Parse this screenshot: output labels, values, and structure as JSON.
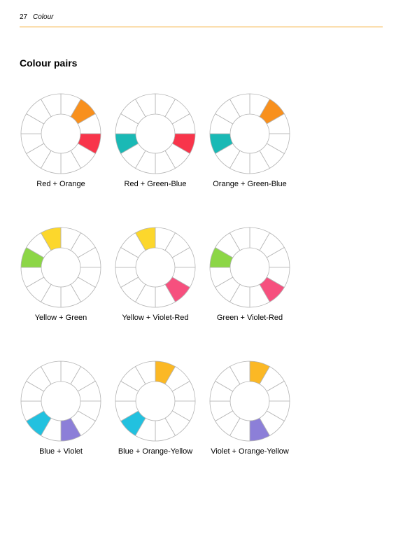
{
  "header": {
    "page_number": "27",
    "section": "Colour"
  },
  "title": "Colour pairs",
  "wheel": {
    "segments": 12,
    "line_color": "#b4b4b4",
    "colors": {
      "yellow": "#fcd72c",
      "orange_yellow": "#fbb825",
      "orange": "#f8901d",
      "red": "#f8354b",
      "violet_red": "#f6507e",
      "violet": "#8c7fd8",
      "blue": "#22c1df",
      "green_blue": "#1ab9b5",
      "green": "#8cd646"
    }
  },
  "pairs": [
    {
      "label": "Red + Orange",
      "highlights": [
        {
          "segment": 1,
          "color": "orange"
        },
        {
          "segment": 3,
          "color": "red"
        }
      ]
    },
    {
      "label": "Red + Green-Blue",
      "highlights": [
        {
          "segment": 3,
          "color": "red"
        },
        {
          "segment": 8,
          "color": "green_blue"
        }
      ]
    },
    {
      "label": "Orange + Green-Blue",
      "highlights": [
        {
          "segment": 1,
          "color": "orange"
        },
        {
          "segment": 8,
          "color": "green_blue"
        }
      ]
    },
    {
      "label": "Yellow + Green",
      "highlights": [
        {
          "segment": 11,
          "color": "yellow"
        },
        {
          "segment": 9,
          "color": "green"
        }
      ]
    },
    {
      "label": "Yellow + Violet-Red",
      "highlights": [
        {
          "segment": 11,
          "color": "yellow"
        },
        {
          "segment": 4,
          "color": "violet_red"
        }
      ]
    },
    {
      "label": "Green + Violet-Red",
      "highlights": [
        {
          "segment": 9,
          "color": "green"
        },
        {
          "segment": 4,
          "color": "violet_red"
        }
      ]
    },
    {
      "label": "Blue + Violet",
      "highlights": [
        {
          "segment": 7,
          "color": "blue"
        },
        {
          "segment": 5,
          "color": "violet"
        }
      ]
    },
    {
      "label": "Blue + Orange-Yellow",
      "highlights": [
        {
          "segment": 7,
          "color": "blue"
        },
        {
          "segment": 0,
          "color": "orange_yellow"
        }
      ]
    },
    {
      "label": "Violet + Orange-Yellow",
      "highlights": [
        {
          "segment": 5,
          "color": "violet"
        },
        {
          "segment": 0,
          "color": "orange_yellow"
        }
      ]
    }
  ]
}
